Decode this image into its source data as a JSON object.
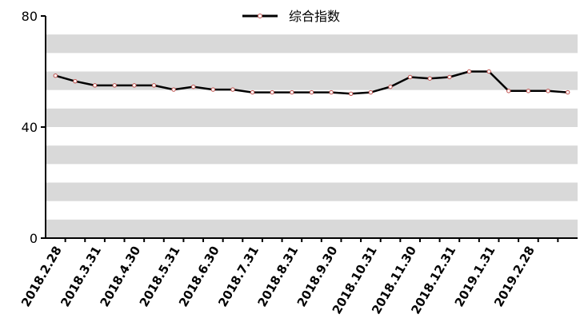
{
  "chart_data": {
    "type": "line",
    "title": "",
    "xlabel": "",
    "ylabel": "",
    "ylim": [
      0,
      80
    ],
    "yticks": [
      0,
      40,
      80
    ],
    "grid": "alternating horizontal bands",
    "legend_placement": "top-center",
    "colors": {
      "line": "#000000",
      "marker_fill": "#ffffff",
      "marker_edge": "#c0504d",
      "band": "#d9d9d9",
      "axis": "#000000"
    },
    "x_tick_labels": [
      "2018.2.28",
      "2018.3.31",
      "2018.4.30",
      "2018.5.31",
      "2018.6.30",
      "2018.7.31",
      "2018.8.31",
      "2018.9.30",
      "2018.10.31",
      "2018.11.30",
      "2018.12.31",
      "2019.1.31",
      "2019.2.28"
    ],
    "series": [
      {
        "name": "综合指数",
        "values": [
          58.5,
          56.5,
          55,
          55,
          55,
          55,
          53.5,
          54.5,
          53.5,
          53.5,
          52.5,
          52.5,
          52.5,
          52.5,
          52.5,
          52,
          52.5,
          54.5,
          58,
          57.5,
          58,
          60,
          60,
          53,
          53,
          53,
          52.5
        ]
      }
    ]
  }
}
